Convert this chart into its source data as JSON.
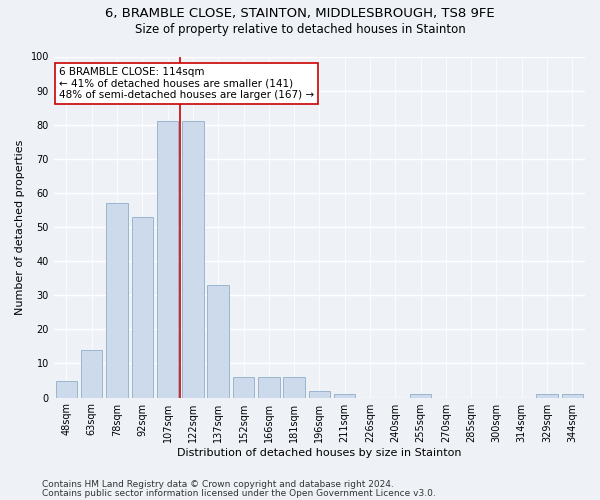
{
  "title1": "6, BRAMBLE CLOSE, STAINTON, MIDDLESBROUGH, TS8 9FE",
  "title2": "Size of property relative to detached houses in Stainton",
  "xlabel": "Distribution of detached houses by size in Stainton",
  "ylabel": "Number of detached properties",
  "categories": [
    "48sqm",
    "63sqm",
    "78sqm",
    "92sqm",
    "107sqm",
    "122sqm",
    "137sqm",
    "152sqm",
    "166sqm",
    "181sqm",
    "196sqm",
    "211sqm",
    "226sqm",
    "240sqm",
    "255sqm",
    "270sqm",
    "285sqm",
    "300sqm",
    "314sqm",
    "329sqm",
    "344sqm"
  ],
  "values": [
    5,
    14,
    57,
    53,
    81,
    81,
    33,
    6,
    6,
    6,
    2,
    1,
    0,
    0,
    1,
    0,
    0,
    0,
    0,
    1,
    1
  ],
  "bar_color": "#ccdaeb",
  "bar_edge_color": "#9ab5d0",
  "background_color": "#eef2f7",
  "grid_color": "#ffffff",
  "property_line_x": 4.5,
  "annotation_line1": "6 BRAMBLE CLOSE: 114sqm",
  "annotation_line2": "← 41% of detached houses are smaller (141)",
  "annotation_line3": "48% of semi-detached houses are larger (167) →",
  "annotation_box_color": "#ffffff",
  "annotation_box_edge_color": "#cc0000",
  "vline_color": "#cc0000",
  "ylim": [
    0,
    100
  ],
  "yticks": [
    0,
    10,
    20,
    30,
    40,
    50,
    60,
    70,
    80,
    90,
    100
  ],
  "footnote1": "Contains HM Land Registry data © Crown copyright and database right 2024.",
  "footnote2": "Contains public sector information licensed under the Open Government Licence v3.0.",
  "title1_fontsize": 9.5,
  "title2_fontsize": 8.5,
  "xlabel_fontsize": 8,
  "ylabel_fontsize": 8,
  "tick_fontsize": 7,
  "annotation_fontsize": 7.5,
  "footnote_fontsize": 6.5
}
